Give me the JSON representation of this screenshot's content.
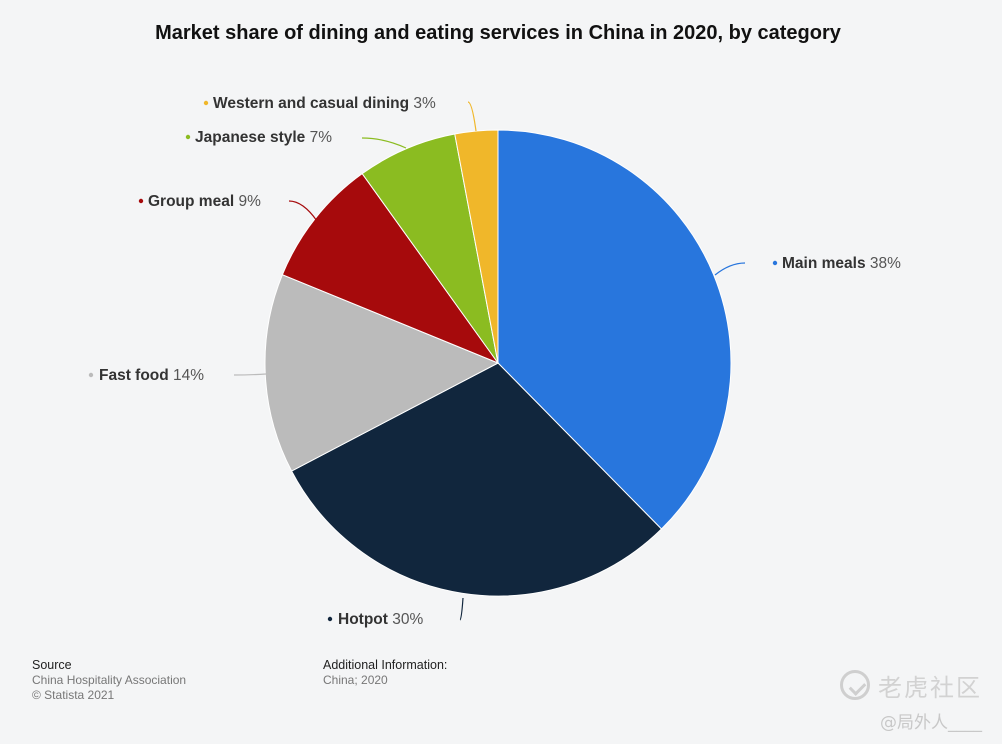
{
  "chart_data": {
    "type": "pie",
    "title": "Market share of dining and eating services in China in 2020, by category",
    "slices": [
      {
        "name": "Main meals",
        "value": 38,
        "label": "38%",
        "color": "#2876dd"
      },
      {
        "name": "Hotpot",
        "value": 30,
        "label": "30%",
        "color": "#11263d"
      },
      {
        "name": "Fast food",
        "value": 14,
        "label": "14%",
        "color": "#bbbbbb"
      },
      {
        "name": "Group meal",
        "value": 9,
        "label": "9%",
        "color": "#a60a0c"
      },
      {
        "name": "Japanese style",
        "value": 7,
        "label": "7%",
        "color": "#8bbc21"
      },
      {
        "name": "Western and casual dining",
        "value": 3,
        "label": "3%",
        "color": "#f0b72a"
      }
    ]
  },
  "footer": {
    "source_heading": "Source",
    "source_name": "China Hospitality Association",
    "copyright": "© Statista 2021",
    "info_heading": "Additional Information:",
    "info_text": "China; 2020"
  },
  "watermark": {
    "brand": "老虎社区",
    "user": "@局外人____",
    "logo_icon": "tiger-logo-icon"
  }
}
